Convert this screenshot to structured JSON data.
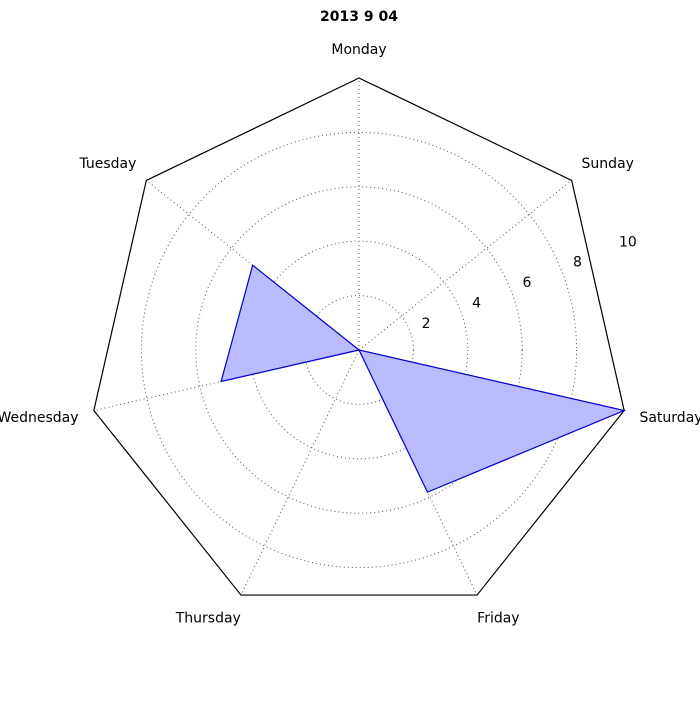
{
  "chart_data": {
    "type": "radar",
    "title": "2013 9 04",
    "categories": [
      "Monday",
      "Tuesday",
      "Wednesday",
      "Thursday",
      "Friday",
      "Saturday",
      "Sunday"
    ],
    "series": [
      {
        "values": [
          0,
          5,
          5.2,
          0,
          5.8,
          10,
          0
        ]
      }
    ],
    "rlim": [
      0,
      10
    ],
    "radial_ticks": [
      2,
      4,
      6,
      8
    ],
    "radial_tick_labels": [
      "2",
      "4",
      "6",
      "8",
      "10"
    ],
    "grid": true,
    "colors": {
      "fill": "#bbbbff",
      "stroke": "#0000cc",
      "frame": "#000000",
      "grid": "#555555"
    }
  }
}
